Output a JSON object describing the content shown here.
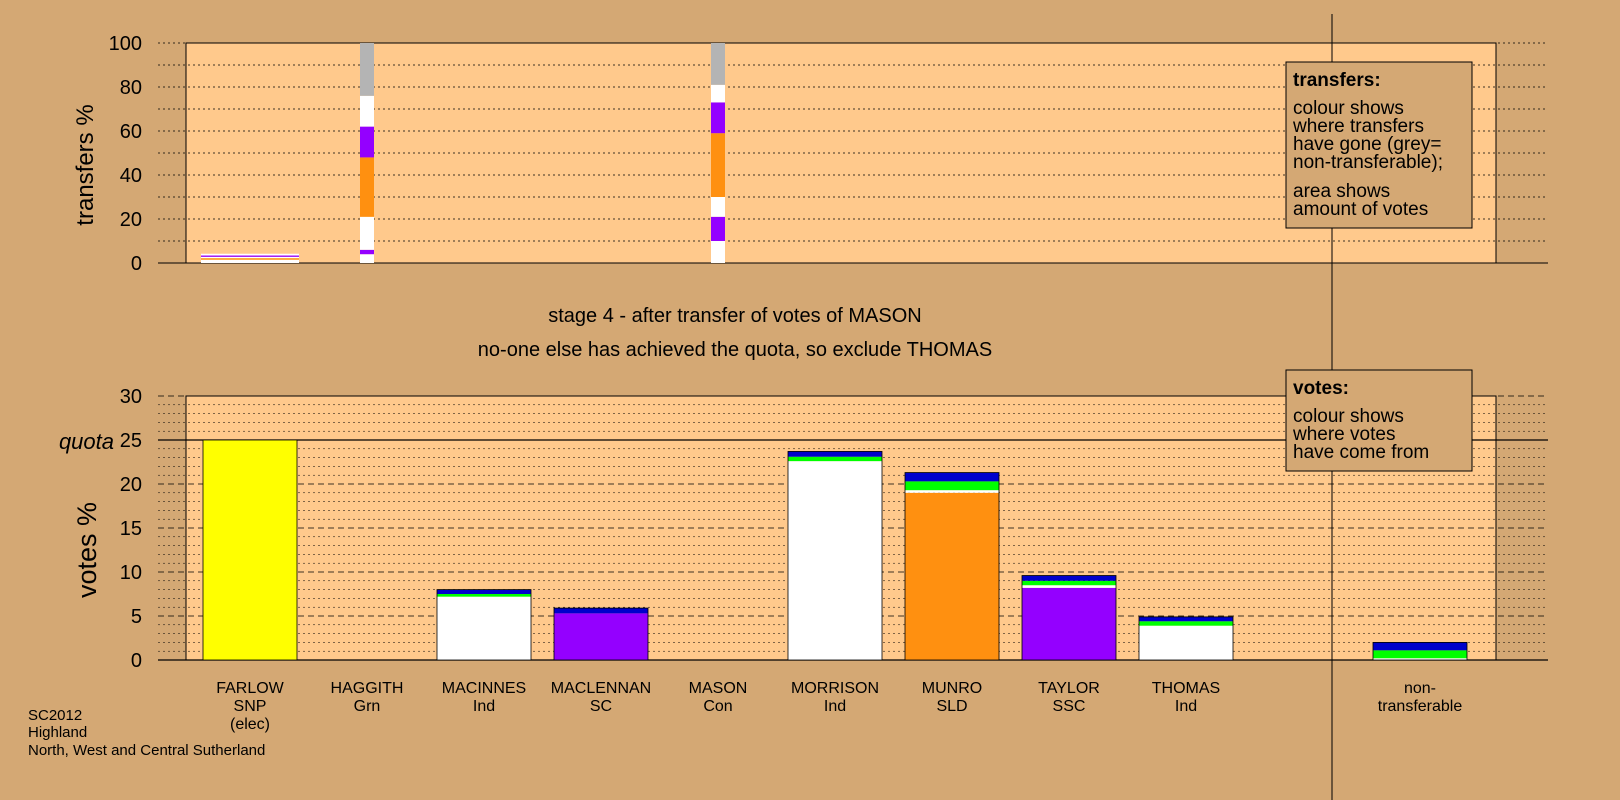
{
  "colors": {
    "background": "#d4a874",
    "plot": "#ffc98c",
    "grid": "#000000"
  },
  "chart_data": {
    "type": "bar",
    "stage_title": "stage 4 - after transfer of votes of MASON",
    "stage_note": "no-one else has achieved the quota, so exclude THOMAS",
    "candidates": [
      {
        "name": "FARLOW",
        "party": "SNP",
        "extra": "(elec)"
      },
      {
        "name": "HAGGITH",
        "party": "Grn"
      },
      {
        "name": "MACINNES",
        "party": "Ind"
      },
      {
        "name": "MACLENNAN",
        "party": "SC"
      },
      {
        "name": "MASON",
        "party": "Con"
      },
      {
        "name": "MORRISON",
        "party": "Ind"
      },
      {
        "name": "MUNRO",
        "party": "SLD"
      },
      {
        "name": "TAYLOR",
        "party": "SSC"
      },
      {
        "name": "THOMAS",
        "party": "Ind"
      },
      {
        "name": "",
        "party": ""
      },
      {
        "name": "non-",
        "party": "transferable"
      }
    ],
    "transfers": {
      "ylabel": "transfers %",
      "ylim": [
        0,
        100
      ],
      "yticks": [
        0,
        20,
        40,
        60,
        80,
        100
      ],
      "columns": [
        {
          "slot": 0,
          "width": "wide",
          "segments": [
            {
              "from": 0,
              "to": 1.5,
              "color": "#ffffff"
            },
            {
              "from": 1.5,
              "to": 2.2,
              "color": "#ff9010"
            },
            {
              "from": 2.2,
              "to": 2.8,
              "color": "#ffffff"
            },
            {
              "from": 2.8,
              "to": 3.4,
              "color": "#9400ff"
            },
            {
              "from": 3.4,
              "to": 4.2,
              "color": "#ffffff"
            }
          ]
        },
        {
          "slot": 1,
          "width": "narrow",
          "segments": [
            {
              "from": 0,
              "to": 4,
              "color": "#ffffff"
            },
            {
              "from": 4,
              "to": 6,
              "color": "#9400ff"
            },
            {
              "from": 6,
              "to": 21,
              "color": "#ffffff"
            },
            {
              "from": 21,
              "to": 48,
              "color": "#ff9010"
            },
            {
              "from": 48,
              "to": 62,
              "color": "#9400ff"
            },
            {
              "from": 62,
              "to": 76,
              "color": "#ffffff"
            },
            {
              "from": 76,
              "to": 100,
              "color": "#b4b4b4"
            }
          ]
        },
        {
          "slot": 4,
          "width": "narrow",
          "segments": [
            {
              "from": 0,
              "to": 10,
              "color": "#ffffff"
            },
            {
              "from": 10,
              "to": 21,
              "color": "#9400ff"
            },
            {
              "from": 21,
              "to": 30,
              "color": "#ffffff"
            },
            {
              "from": 30,
              "to": 59,
              "color": "#ff9010"
            },
            {
              "from": 59,
              "to": 73,
              "color": "#9400ff"
            },
            {
              "from": 73,
              "to": 81,
              "color": "#ffffff"
            },
            {
              "from": 81,
              "to": 100,
              "color": "#b4b4b4"
            }
          ]
        }
      ]
    },
    "votes": {
      "ylabel": "votes %",
      "ylim": [
        0,
        30
      ],
      "yticks": [
        0,
        5,
        10,
        15,
        20,
        25,
        30
      ],
      "quota": 25,
      "quota_label": "quota",
      "bars": [
        {
          "slot": 0,
          "segments": [
            {
              "value": 25,
              "color": "#ffff00"
            }
          ]
        },
        {
          "slot": 2,
          "segments": [
            {
              "value": 7.2,
              "color": "#ffffff"
            },
            {
              "value": 0.3,
              "color": "#00ff00"
            },
            {
              "value": 0.5,
              "color": "#0000cc"
            }
          ]
        },
        {
          "slot": 3,
          "segments": [
            {
              "value": 5.3,
              "color": "#9400ff"
            },
            {
              "value": 0.6,
              "color": "#0000cc"
            }
          ]
        },
        {
          "slot": 5,
          "segments": [
            {
              "value": 22.6,
              "color": "#ffffff"
            },
            {
              "value": 0.5,
              "color": "#00ff00"
            },
            {
              "value": 0.6,
              "color": "#0000cc"
            }
          ]
        },
        {
          "slot": 6,
          "segments": [
            {
              "value": 19.0,
              "color": "#ff9010"
            },
            {
              "value": 0.3,
              "color": "#ffffff"
            },
            {
              "value": 1.0,
              "color": "#00ff00"
            },
            {
              "value": 1.0,
              "color": "#0000cc"
            }
          ]
        },
        {
          "slot": 7,
          "segments": [
            {
              "value": 8.2,
              "color": "#9400ff"
            },
            {
              "value": 0.3,
              "color": "#ffffff"
            },
            {
              "value": 0.5,
              "color": "#00ff00"
            },
            {
              "value": 0.6,
              "color": "#0000cc"
            }
          ]
        },
        {
          "slot": 8,
          "segments": [
            {
              "value": 3.9,
              "color": "#ffffff"
            },
            {
              "value": 0.5,
              "color": "#00ff00"
            },
            {
              "value": 0.5,
              "color": "#0000cc"
            }
          ]
        },
        {
          "slot": 10,
          "segments": [
            {
              "value": 0.2,
              "color": "#ffffff"
            },
            {
              "value": 0.9,
              "color": "#00ff00"
            },
            {
              "value": 0.9,
              "color": "#0000cc"
            }
          ]
        }
      ]
    },
    "legends": {
      "transfers": {
        "title": "transfers:",
        "lines": [
          "colour shows",
          "where transfers",
          "have gone (grey=",
          "non-transferable);",
          "area shows",
          "amount of votes"
        ]
      },
      "votes": {
        "title": "votes:",
        "lines": [
          "colour shows",
          "where votes",
          "have come from"
        ]
      }
    },
    "footer": [
      "SC2012",
      "Highland",
      "North, West and Central Sutherland"
    ]
  }
}
